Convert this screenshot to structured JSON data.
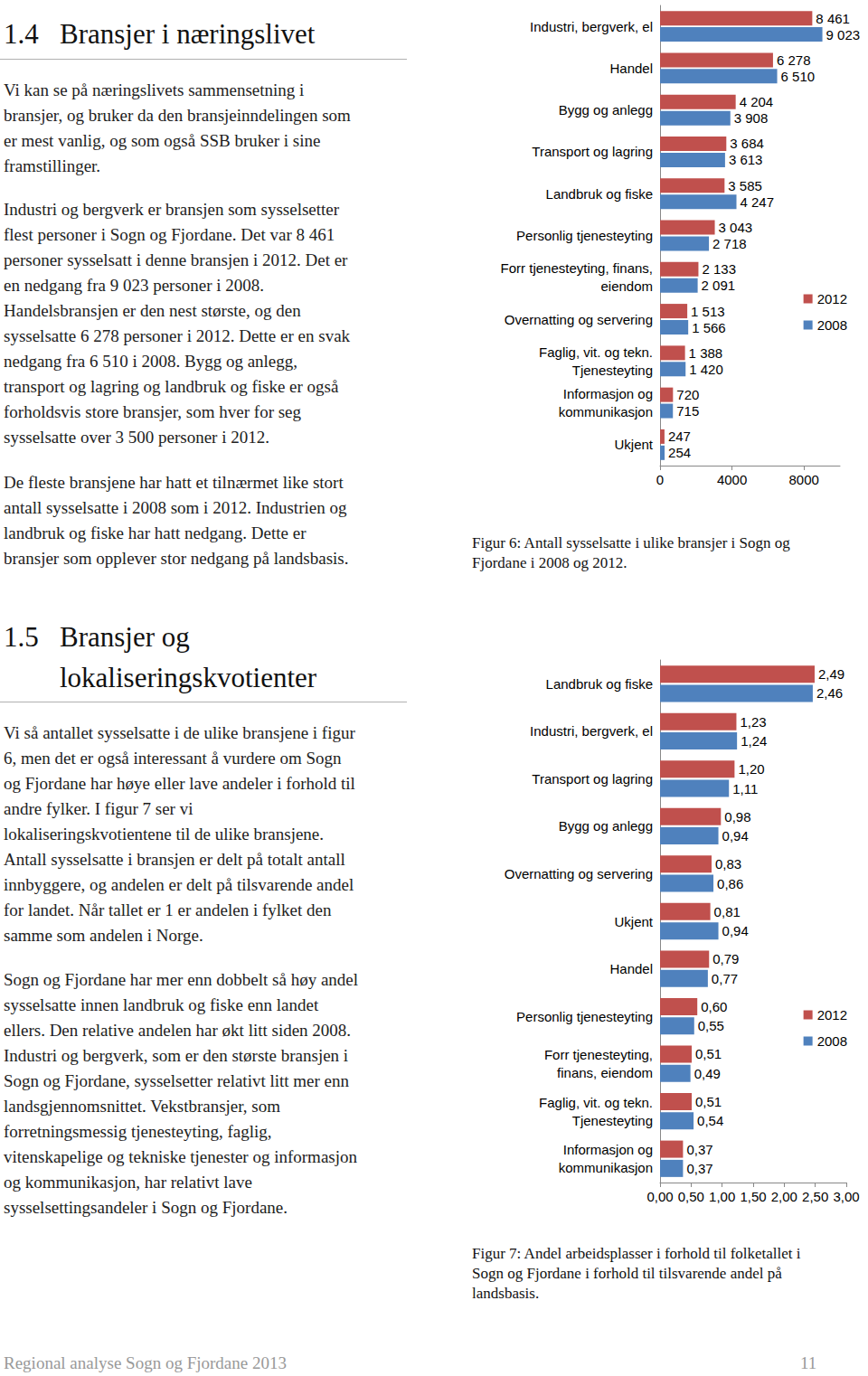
{
  "document": {
    "sections": [
      {
        "number": "1.4",
        "title_lines": [
          "Bransjer i næringslivet"
        ],
        "paragraphs": [
          [
            "Vi kan se på næringslivets sammensetning i",
            "bransjer, og bruker da den bransjeinndelingen som",
            "er mest vanlig, og som også SSB bruker i sine",
            "framstillinger."
          ],
          [
            "Industri og bergverk er bransjen som sysselsetter",
            "flest personer i Sogn og Fjordane. Det var 8 461",
            "personer sysselsatt i denne bransjen i 2012. Det er",
            "en nedgang fra 9 023 personer i 2008.",
            "Handelsbransjen er den nest største, og den",
            "sysselsatte 6 278 personer i 2012. Dette er en svak",
            "nedgang fra 6 510 i 2008. Bygg og anlegg,",
            "transport og lagring og landbruk og fiske er også",
            "forholdsvis store bransjer, som hver for seg",
            "sysselsatte over 3 500 personer i 2012."
          ],
          [
            "De fleste bransjene har hatt et tilnærmet like stort",
            "antall sysselsatte i 2008 som i 2012. Industrien og",
            "landbruk og fiske har hatt nedgang. Dette er",
            "bransjer som opplever stor nedgang på landsbasis."
          ]
        ]
      },
      {
        "number": "1.5",
        "title_lines": [
          "Bransjer og",
          "lokaliseringskvotienter"
        ],
        "paragraphs": [
          [
            "Vi så antallet sysselsatte i de ulike bransjene i figur",
            "6, men det er også interessant å vurdere om Sogn",
            "og Fjordane har høye eller lave andeler i forhold til",
            "andre fylker. I figur 7 ser vi",
            "lokaliseringskvotientene til de ulike bransjene.",
            "Antall sysselsatte i bransjen er delt på totalt antall",
            "innbyggere, og andelen er delt på tilsvarende andel",
            "for landet. Når tallet er 1 er andelen i fylket den",
            "samme som andelen i Norge."
          ],
          [
            "Sogn og Fjordane har mer enn dobbelt så høy andel",
            "sysselsatte innen landbruk og fiske enn landet",
            "ellers. Den relative andelen har økt litt siden 2008.",
            "Industri og bergverk, som er den største bransjen i",
            "Sogn og Fjordane, sysselsetter relativt litt mer enn",
            "landsgjennomsnittet. Vekstbransjer, som",
            "forretningsmessig tjenesteyting, faglig,",
            "vitenskapelige og tekniske tjenester og informasjon",
            "og kommunikasjon, har relativt lave",
            "sysselsettingsandeler i Sogn og Fjordane."
          ]
        ]
      }
    ],
    "captions": [
      [
        "Figur 6: Antall sysselsatte i ulike bransjer i Sogn og",
        "Fjordane i 2008 og 2012."
      ],
      [
        "Figur 7: Andel arbeidsplasser i forhold til folketallet i",
        "Sogn og Fjordane i forhold til tilsvarende andel på",
        "landsbasis."
      ]
    ],
    "footer": {
      "text": "Regional analyse Sogn og Fjordane 2013",
      "page": "11"
    }
  },
  "chart_data": [
    {
      "type": "bar",
      "orientation": "horizontal",
      "grid": false,
      "legend": "right",
      "data_labels": true,
      "categories": [
        "Industri, bergverk, el",
        "Handel",
        "Bygg og anlegg",
        "Transport og lagring",
        "Landbruk og fiske",
        "Personlig tjenesteyting",
        "Forr tjenesteyting, finans,\neiendom",
        "Overnatting og servering",
        "Faglig, vit. og tekn.\nTjenesteyting",
        "Informasjon og\nkommunikasjon",
        "Ukjent"
      ],
      "series": [
        {
          "name": "2012",
          "color": "#c0504d",
          "values": [
            8461,
            6278,
            4204,
            3684,
            3585,
            3043,
            2133,
            1513,
            1388,
            720,
            247
          ],
          "value_labels": [
            "8 461",
            "6 278",
            "4 204",
            "3 684",
            "3 585",
            "3 043",
            "2 133",
            "1 513",
            "1 388",
            "720",
            "247"
          ]
        },
        {
          "name": "2008",
          "color": "#4f81bd",
          "values": [
            9023,
            6510,
            3908,
            3613,
            4247,
            2718,
            2091,
            1566,
            1420,
            715,
            254
          ],
          "value_labels": [
            "9 023",
            "6 510",
            "3 908",
            "3 613",
            "4 247",
            "2 718",
            "2 091",
            "1 566",
            "1 420",
            "715",
            "254"
          ]
        }
      ],
      "xlim": [
        0,
        10000
      ],
      "xticks": [
        0,
        4000,
        8000
      ]
    },
    {
      "type": "bar",
      "orientation": "horizontal",
      "grid": false,
      "legend": "right",
      "data_labels": true,
      "categories": [
        "Landbruk og fiske",
        "Industri, bergverk, el",
        "Transport og lagring",
        "Bygg og anlegg",
        "Overnatting og servering",
        "Ukjent",
        "Handel",
        "Personlig tjenesteyting",
        "Forr tjenesteyting,\nfinans, eiendom",
        "Faglig, vit. og tekn.\nTjenesteyting",
        "Informasjon og\nkommunikasjon"
      ],
      "series": [
        {
          "name": "2012",
          "color": "#c0504d",
          "values": [
            2.49,
            1.23,
            1.2,
            0.98,
            0.83,
            0.81,
            0.79,
            0.6,
            0.51,
            0.51,
            0.37
          ],
          "value_labels": [
            "2,49",
            "1,23",
            "1,20",
            "0,98",
            "0,83",
            "0,81",
            "0,79",
            "0,60",
            "0,51",
            "0,51",
            "0,37"
          ]
        },
        {
          "name": "2008",
          "color": "#4f81bd",
          "values": [
            2.46,
            1.24,
            1.11,
            0.94,
            0.86,
            0.94,
            0.77,
            0.55,
            0.49,
            0.54,
            0.37
          ],
          "value_labels": [
            "2,46",
            "1,24",
            "1,11",
            "0,94",
            "0,86",
            "0,94",
            "0,77",
            "0,55",
            "0,49",
            "0,54",
            "0,37"
          ]
        }
      ],
      "xlim": [
        0,
        3
      ],
      "xticks": [
        {
          "value": 0,
          "label": "0,00"
        },
        {
          "value": 0.5,
          "label": "0,50"
        },
        {
          "value": 1,
          "label": "1,00"
        },
        {
          "value": 1.5,
          "label": "1,50"
        },
        {
          "value": 2,
          "label": "2,00"
        },
        {
          "value": 2.5,
          "label": "2,50"
        },
        {
          "value": 3,
          "label": "3,00"
        }
      ]
    }
  ]
}
